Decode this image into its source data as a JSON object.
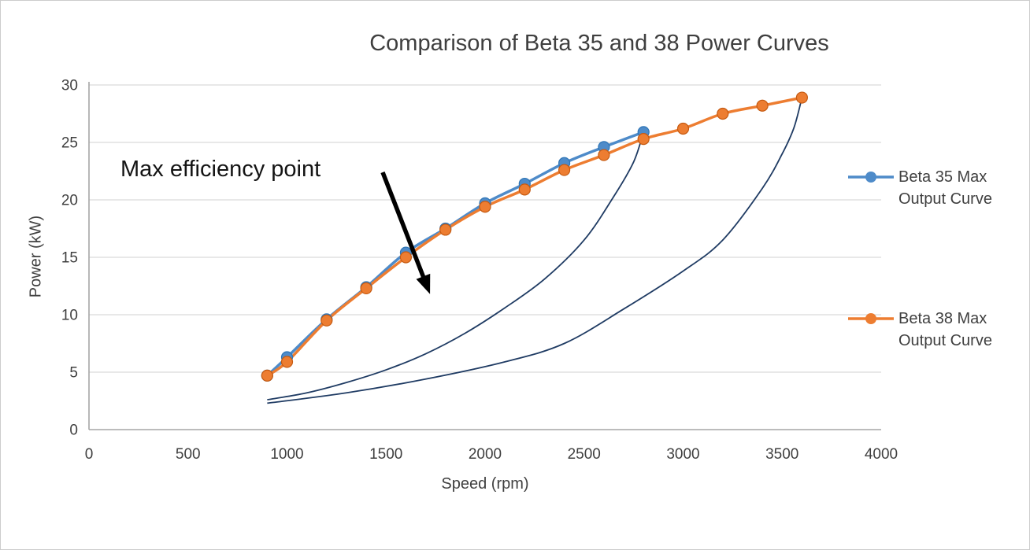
{
  "chart": {
    "title": "Comparison of Beta 35 and 38 Power Curves",
    "annotation_text": "Max efficiency point",
    "x_axis_title": "Speed (rpm)",
    "y_axis_title": "Power (kW)"
  },
  "legend": {
    "items": [
      {
        "line1": "Beta 35 Max",
        "line2": "Output Curve",
        "color": "#4E8BC9"
      },
      {
        "line1": "Beta 38 Max",
        "line2": "Output Curve",
        "color": "#ED7D31"
      }
    ]
  },
  "colors": {
    "beta35_line": "#4E8BC9",
    "beta35_marker_edge": "#2E75B6",
    "beta38_line": "#ED7D31",
    "beta38_marker_edge": "#C55A11",
    "propeller_curve": "#1F3B63",
    "gridline": "#D9D9D9",
    "axis_line": "#A6A6A6",
    "text": "#3F3F3F",
    "annotation_arrow": "#000000"
  },
  "chart_data": {
    "type": "line",
    "title": "Comparison of Beta 35 and 38 Power Curves",
    "xlabel": "Speed (rpm)",
    "ylabel": "Power (kW)",
    "xlim": [
      0,
      4000
    ],
    "ylim": [
      0,
      30
    ],
    "x_ticks": [
      0,
      500,
      1000,
      1500,
      2000,
      2500,
      3000,
      3500,
      4000
    ],
    "y_ticks": [
      0,
      5,
      10,
      15,
      20,
      25,
      30
    ],
    "grid": "horizontal",
    "legend_position": "right",
    "series": [
      {
        "name": "Beta 35 Max Output Curve",
        "color": "#4E8BC9",
        "marker_edge": "#2E75B6",
        "marker": "circle",
        "x": [
          900,
          1000,
          1200,
          1400,
          1600,
          1800,
          2000,
          2200,
          2400,
          2600,
          2800
        ],
        "y": [
          4.7,
          6.3,
          9.6,
          12.4,
          15.4,
          17.5,
          19.7,
          21.4,
          23.2,
          24.6,
          25.9
        ]
      },
      {
        "name": "Beta 38 Max Output Curve",
        "color": "#ED7D31",
        "marker_edge": "#C55A11",
        "marker": "circle",
        "x": [
          900,
          1000,
          1200,
          1400,
          1600,
          1800,
          2000,
          2200,
          2400,
          2600,
          2800,
          3000,
          3200,
          3400,
          3600
        ],
        "y": [
          4.7,
          5.9,
          9.5,
          12.3,
          15.0,
          17.4,
          19.4,
          20.9,
          22.6,
          23.9,
          25.3,
          26.2,
          27.5,
          28.2,
          28.9
        ]
      }
    ],
    "unlabeled_curves": [
      {
        "name": "propeller-demand-curve-beta-35",
        "color": "#1F3B63",
        "points": [
          [
            900,
            2.6
          ],
          [
            1100,
            3.2
          ],
          [
            1300,
            4.1
          ],
          [
            1500,
            5.2
          ],
          [
            1700,
            6.6
          ],
          [
            1900,
            8.4
          ],
          [
            2100,
            10.6
          ],
          [
            2300,
            13.1
          ],
          [
            2500,
            16.5
          ],
          [
            2650,
            20.3
          ],
          [
            2750,
            23.3
          ],
          [
            2800,
            25.9
          ]
        ]
      },
      {
        "name": "propeller-demand-curve-beta-38",
        "color": "#1F3B63",
        "points": [
          [
            900,
            2.3
          ],
          [
            1300,
            3.2
          ],
          [
            1700,
            4.4
          ],
          [
            2100,
            5.9
          ],
          [
            2400,
            7.5
          ],
          [
            2700,
            10.5
          ],
          [
            3000,
            13.8
          ],
          [
            3200,
            16.5
          ],
          [
            3400,
            21.0
          ],
          [
            3500,
            24.0
          ],
          [
            3560,
            26.3
          ],
          [
            3600,
            28.9
          ]
        ]
      }
    ],
    "annotation": {
      "text": "Max efficiency point",
      "arrow_start_data_xy": [
        1483,
        22.4
      ],
      "arrow_end_data_xy": [
        1722,
        11.8
      ]
    }
  }
}
